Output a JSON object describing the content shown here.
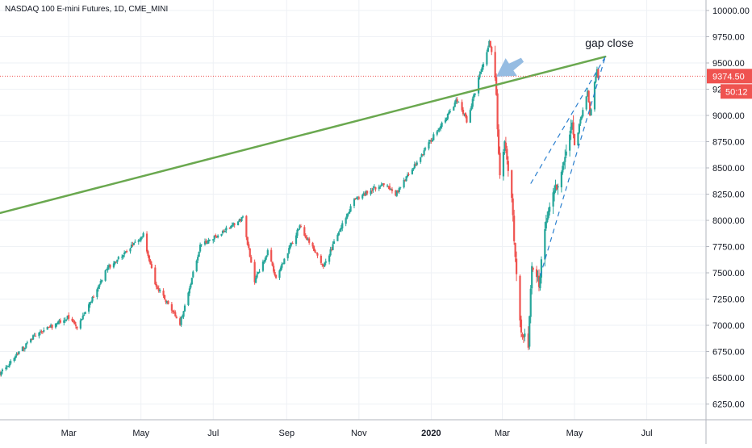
{
  "chart_data": {
    "type": "candlestick",
    "title": "NASDAQ 100 E-mini Futures, 1D, CME_MINI",
    "y_ticks": [
      6250,
      6500,
      6750,
      7000,
      7250,
      7500,
      7750,
      8000,
      8250,
      8500,
      8750,
      9000,
      9250,
      9500,
      9750,
      10000
    ],
    "y_tick_labels": [
      "6250.00",
      "6500.00",
      "6750.00",
      "7000.00",
      "7250.00",
      "7500.00",
      "7750.00",
      "8000.00",
      "8250.00",
      "8500.00",
      "8750.00",
      "9000.00",
      "9250.00",
      "9500.00",
      "9750.00",
      "10000.00"
    ],
    "ylim": [
      6100,
      10100
    ],
    "x_tick_labels": [
      "Mar",
      "May",
      "Jul",
      "Sep",
      "Nov",
      "2020",
      "Mar",
      "May",
      "Jul"
    ],
    "x_tick_dates": [
      "2019-03-01",
      "2019-05-01",
      "2019-07-01",
      "2019-09-01",
      "2019-11-01",
      "2020-01-01",
      "2020-03-01",
      "2020-05-01",
      "2020-07-01"
    ],
    "xlim": [
      "2019-01-02",
      "2020-08-20"
    ],
    "price_line": 9374.5,
    "price_label": "9374.50",
    "countdown": "50:12",
    "colors": {
      "up": "#26a69a",
      "down": "#ef5350",
      "trend": "#6aa84f",
      "price_line": "#ef5350",
      "wedge": "#2a7fcf",
      "arrow": "#8fb8e0"
    },
    "anchors": [
      [
        "2019-01-02",
        6540
      ],
      [
        "2019-01-31",
        6900
      ],
      [
        "2019-03-01",
        7080
      ],
      [
        "2019-03-08",
        6970
      ],
      [
        "2019-04-03",
        7550
      ],
      [
        "2019-04-30",
        7820
      ],
      [
        "2019-05-03",
        7860
      ],
      [
        "2019-05-13",
        7400
      ],
      [
        "2019-06-03",
        7020
      ],
      [
        "2019-06-20",
        7750
      ],
      [
        "2019-07-26",
        8020
      ],
      [
        "2019-08-05",
        7420
      ],
      [
        "2019-08-16",
        7700
      ],
      [
        "2019-08-23",
        7450
      ],
      [
        "2019-09-12",
        7950
      ],
      [
        "2019-10-02",
        7560
      ],
      [
        "2019-10-28",
        8200
      ],
      [
        "2019-11-22",
        8350
      ],
      [
        "2019-12-02",
        8250
      ],
      [
        "2019-12-31",
        8750
      ],
      [
        "2020-01-23",
        9150
      ],
      [
        "2020-01-31",
        8950
      ],
      [
        "2020-02-19",
        9700
      ],
      [
        "2020-02-24",
        9400
      ],
      [
        "2020-02-28",
        8400
      ],
      [
        "2020-03-03",
        8800
      ],
      [
        "2020-03-09",
        8200
      ],
      [
        "2020-03-13",
        7500
      ],
      [
        "2020-03-16",
        7000
      ],
      [
        "2020-03-23",
        6800
      ],
      [
        "2020-03-26",
        7600
      ],
      [
        "2020-04-01",
        7400
      ],
      [
        "2020-04-08",
        8050
      ],
      [
        "2020-04-21",
        8500
      ],
      [
        "2020-04-29",
        8950
      ],
      [
        "2020-05-01",
        8700
      ],
      [
        "2020-05-12",
        9250
      ],
      [
        "2020-05-14",
        9000
      ],
      [
        "2020-05-20",
        9450
      ],
      [
        "2020-05-21",
        9374.5
      ]
    ],
    "trendline": [
      [
        "2019-01-02",
        8070
      ],
      [
        "2020-05-27",
        9560
      ]
    ],
    "wedge_upper": [
      [
        "2020-03-25",
        8350
      ],
      [
        "2020-05-27",
        9560
      ]
    ],
    "wedge_lower": [
      [
        "2020-04-02",
        7470
      ],
      [
        "2020-05-27",
        9560
      ]
    ],
    "annotation": {
      "text": "gap close",
      "date": "2020-05-10",
      "value": 9655
    },
    "arrow": {
      "from": [
        "2020-03-18",
        9530
      ],
      "to": [
        "2020-02-25",
        9370
      ]
    },
    "grid": true
  }
}
